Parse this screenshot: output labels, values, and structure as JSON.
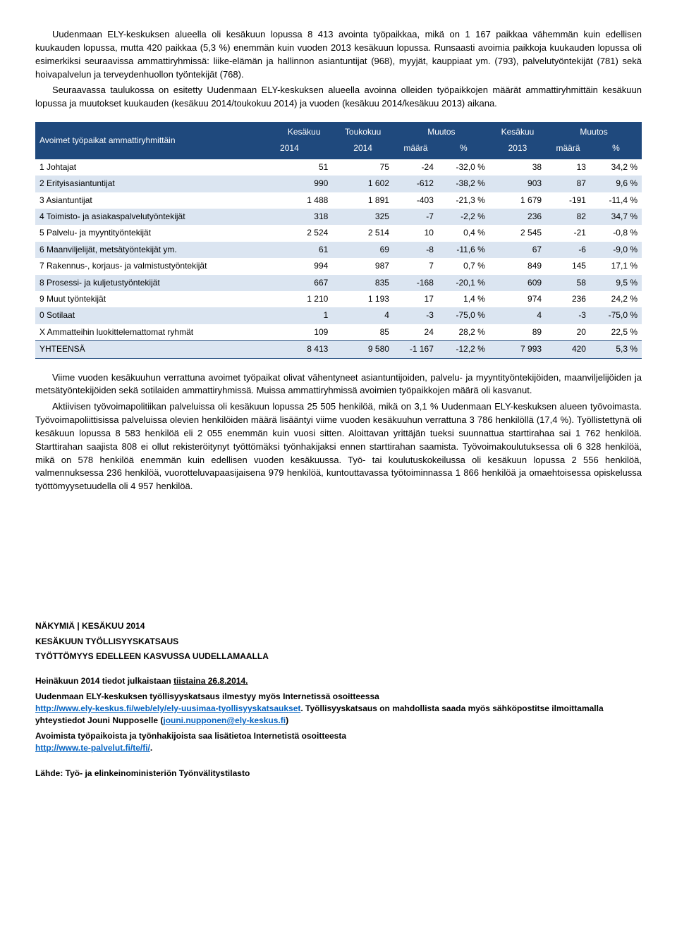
{
  "intro_p1": "Uudenmaan ELY-keskuksen alueella oli kesäkuun lopussa 8 413 avointa työpaikkaa, mikä on 1 167 paikkaa vähemmän kuin edellisen kuukauden lopussa, mutta 420 paikkaa (5,3 %) enemmän kuin vuoden 2013 kesäkuun lopussa. Runsaasti avoimia paikkoja kuukauden lopussa oli esimerkiksi seuraavissa ammattiryhmissä: liike-elämän ja hallinnon asiantuntijat (968), myyjät, kauppiaat ym. (793), palvelutyöntekijät (781) sekä hoivapalvelun ja terveydenhuollon työntekijät (768).",
  "intro_p2": "Seuraavassa taulukossa on esitetty Uudenmaan ELY-keskuksen alueella avoinna olleiden työpaikkojen määrät ammattiryhmittäin kesäkuun lopussa ja muutokset kuukauden (kesäkuu 2014/toukokuu 2014) ja vuoden (kesäkuu 2014/kesäkuu 2013) aikana.",
  "table": {
    "header_col1": "Avoimet työpaikat ammattiryhmittäin",
    "h_kesakuu2014_a": "Kesäkuu",
    "h_kesakuu2014_b": "2014",
    "h_toukokuu_a": "Toukokuu",
    "h_toukokuu_b": "2014",
    "h_muutos1_a": "Muutos",
    "h_muutos1_m": "määrä",
    "h_muutos1_p": "%",
    "h_kesakuu2013_a": "Kesäkuu",
    "h_kesakuu2013_b": "2013",
    "h_muutos2_a": "Muutos",
    "h_muutos2_m": "määrä",
    "h_muutos2_p": "%",
    "rows": [
      {
        "label": "1 Johtajat",
        "c1": "51",
        "c2": "75",
        "c3": "-24",
        "c4": "-32,0 %",
        "c5": "38",
        "c6": "13",
        "c7": "34,2 %"
      },
      {
        "label": "2 Erityisasiantuntijat",
        "c1": "990",
        "c2": "1 602",
        "c3": "-612",
        "c4": "-38,2 %",
        "c5": "903",
        "c6": "87",
        "c7": "9,6 %"
      },
      {
        "label": "3 Asiantuntijat",
        "c1": "1 488",
        "c2": "1 891",
        "c3": "-403",
        "c4": "-21,3 %",
        "c5": "1 679",
        "c6": "-191",
        "c7": "-11,4 %"
      },
      {
        "label": "4 Toimisto- ja asiakaspalvelutyöntekijät",
        "c1": "318",
        "c2": "325",
        "c3": "-7",
        "c4": "-2,2 %",
        "c5": "236",
        "c6": "82",
        "c7": "34,7 %"
      },
      {
        "label": "5 Palvelu- ja myyntityöntekijät",
        "c1": "2 524",
        "c2": "2 514",
        "c3": "10",
        "c4": "0,4 %",
        "c5": "2 545",
        "c6": "-21",
        "c7": "-0,8 %"
      },
      {
        "label": "6 Maanviljelijät, metsätyöntekijät ym.",
        "c1": "61",
        "c2": "69",
        "c3": "-8",
        "c4": "-11,6 %",
        "c5": "67",
        "c6": "-6",
        "c7": "-9,0 %"
      },
      {
        "label": "7 Rakennus-, korjaus- ja valmistustyöntekijät",
        "c1": "994",
        "c2": "987",
        "c3": "7",
        "c4": "0,7 %",
        "c5": "849",
        "c6": "145",
        "c7": "17,1 %"
      },
      {
        "label": "8 Prosessi- ja kuljetustyöntekijät",
        "c1": "667",
        "c2": "835",
        "c3": "-168",
        "c4": "-20,1 %",
        "c5": "609",
        "c6": "58",
        "c7": "9,5 %"
      },
      {
        "label": "9 Muut työntekijät",
        "c1": "1 210",
        "c2": "1 193",
        "c3": "17",
        "c4": "1,4 %",
        "c5": "974",
        "c6": "236",
        "c7": "24,2 %"
      },
      {
        "label": "0 Sotilaat",
        "c1": "1",
        "c2": "4",
        "c3": "-3",
        "c4": "-75,0 %",
        "c5": "4",
        "c6": "-3",
        "c7": "-75,0 %"
      },
      {
        "label": "X Ammatteihin luokittelemattomat ryhmät",
        "c1": "109",
        "c2": "85",
        "c3": "24",
        "c4": "28,2 %",
        "c5": "89",
        "c6": "20",
        "c7": "22,5 %"
      },
      {
        "label": "YHTEENSÄ",
        "c1": "8 413",
        "c2": "9 580",
        "c3": "-1 167",
        "c4": "-12,2 %",
        "c5": "7 993",
        "c6": "420",
        "c7": "5,3 %"
      }
    ],
    "stripe_color": "#dbe5f1",
    "header_bg": "#1f497d"
  },
  "body_p1": "Viime vuoden kesäkuuhun verrattuna avoimet työpaikat olivat vähentyneet asiantuntijoiden, palvelu- ja myyntityöntekijöiden, maanviljelijöiden ja metsätyöntekijöiden sekä sotilaiden ammattiryhmissä. Muissa ammattiryhmissä avoimien työpaikkojen määrä oli kasvanut.",
  "body_p2": "Aktiivisen työvoimapolitiikan palveluissa oli kesäkuun lopussa 25 505 henkilöä, mikä on 3,1 % Uudenmaan ELY-keskuksen alueen työvoimasta. Työvoimapoliittisissa palveluissa olevien henkilöiden määrä lisääntyi viime vuoden kesäkuuhun verrattuna 3 786 henkilöllä (17,4 %). Työllistettynä oli kesäkuun lopussa 8 583 henkilöä eli 2 055 enemmän kuin vuosi sitten. Aloittavan yrittäjän tueksi suunnattua starttirahaa sai 1 762 henkilöä. Starttirahan saajista 808 ei ollut rekisteröitynyt työttömäksi työnhakijaksi ennen starttirahan saamista. Työvoimakoulutuksessa oli 6 328 henkilöä, mikä on 578 henkilöä enemmän kuin edellisen vuoden kesäkuussa. Työ- tai koulutuskokeilussa oli kesäkuun lopussa 2 556 henkilöä, valmennuksessa 236 henkilöä, vuorotteluvapaasijaisena 979 henkilöä, kuntouttavassa työtoiminnassa 1 866 henkilöä ja omaehtoisessa opiskelussa työttömyysetuudella oli 4 957 henkilöä.",
  "footer": {
    "l1": "NÄKYMIÄ | KESÄKUU 2014",
    "l2": "KESÄKUUN TYÖLLISYYSKATSAUS",
    "l3": "TYÖTTÖMYYS EDELLEEN KASVUSSA UUDELLAMAALLA",
    "l4a": "Heinäkuun 2014 tiedot julkaistaan ",
    "l4b": "tiistaina 26.8.2014.",
    "l5": "Uudenmaan ELY-keskuksen työllisyyskatsaus ilmestyy myös Internetissä osoitteessa",
    "link1": "http://www.ely-keskus.fi/web/ely/ely-uusimaa-tyollisyyskatsaukset",
    "l6a": ". Työllisyyskatsaus on mahdollista saada myös sähköpostitse ilmoittamalla yhteystiedot Jouni Nupposelle (",
    "link2": "jouni.nupponen@ely-keskus.fi",
    "l6b": ")",
    "l7": "Avoimista työpaikoista ja työnhakijoista saa lisätietoa Internetistä osoitteesta",
    "link3": "http://www.te-palvelut.fi/te/fi/",
    "l8": ".",
    "source": "Lähde: Työ- ja elinkeinoministeriön Työnvälitystilasto"
  }
}
